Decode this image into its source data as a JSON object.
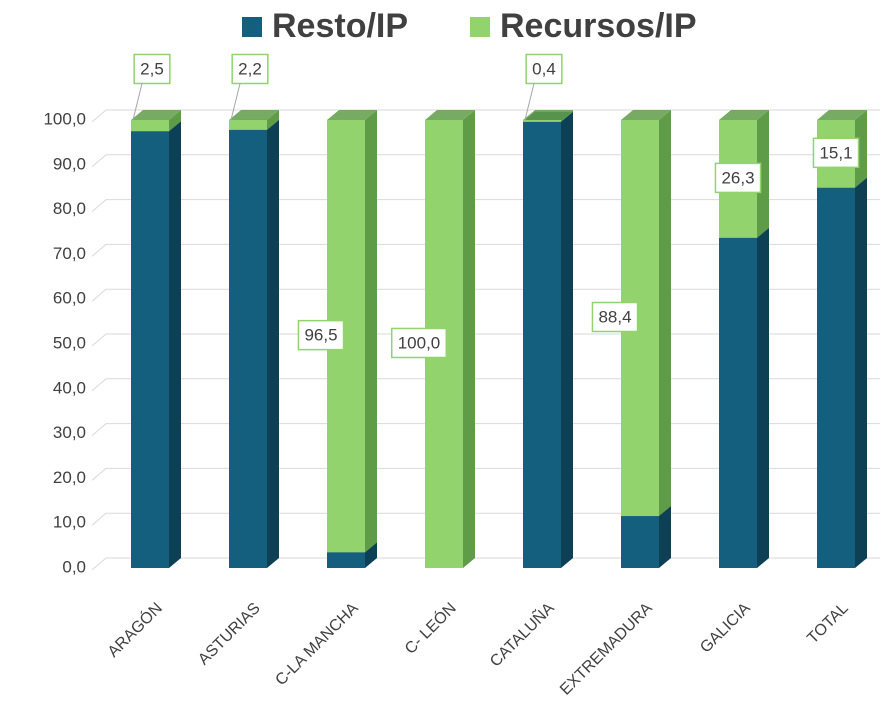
{
  "chart_data": {
    "type": "bar",
    "stacked": true,
    "categories": [
      "ARAGÓN",
      "ASTURIAS",
      "C-LA MANCHA",
      "C- LEÓN",
      "CATALUÑA",
      "EXTREMADURA",
      "GALICIA",
      "TOTAL"
    ],
    "series": [
      {
        "name": "Resto/IP",
        "color": "#145f7e",
        "side": "#0d3f55",
        "values": [
          97.5,
          97.8,
          3.5,
          0,
          99.6,
          11.6,
          73.7,
          84.9
        ]
      },
      {
        "name": "Recursos/IP",
        "color": "#92d36e",
        "side": "#5f9c48",
        "values": [
          2.5,
          2.2,
          96.5,
          100.0,
          0.4,
          88.4,
          26.3,
          15.1
        ],
        "value_labels": [
          "2,5",
          "2,2",
          "96,5",
          "100,0",
          "0,4",
          "88,4",
          "26,3",
          "15,1"
        ]
      }
    ],
    "ylim": [
      0,
      100
    ],
    "yticks": [
      {
        "value": 0,
        "label": "0,0"
      },
      {
        "value": 10,
        "label": "10,0"
      },
      {
        "value": 20,
        "label": "20,0"
      },
      {
        "value": 30,
        "label": "30,0"
      },
      {
        "value": 40,
        "label": "40,0"
      },
      {
        "value": 50,
        "label": "50,0"
      },
      {
        "value": 60,
        "label": "60,0"
      },
      {
        "value": 70,
        "label": "70,0"
      },
      {
        "value": 80,
        "label": "80,0"
      },
      {
        "value": 90,
        "label": "90,0"
      },
      {
        "value": 100,
        "label": "100,0"
      }
    ],
    "grid": true,
    "legend": "top"
  }
}
